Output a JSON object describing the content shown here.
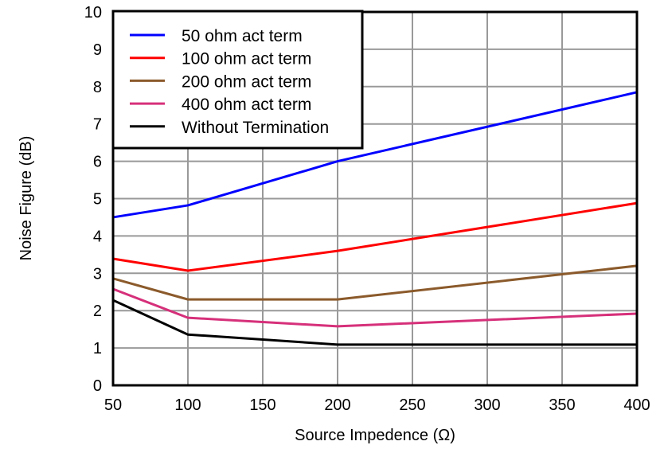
{
  "chart_data": {
    "type": "line",
    "title": "",
    "xlabel": "Source Impedence (Ω)",
    "ylabel": "Noise Figure (dB)",
    "xlim": [
      50,
      400
    ],
    "ylim": [
      0,
      10
    ],
    "xticks": [
      50,
      100,
      150,
      200,
      250,
      300,
      350,
      400
    ],
    "yticks": [
      0,
      1,
      2,
      3,
      4,
      5,
      6,
      7,
      8,
      9,
      10
    ],
    "grid": true,
    "legend_position": "top-left",
    "x": [
      50,
      100,
      200,
      400
    ],
    "series": [
      {
        "name": "50 ohm act term",
        "color": "#0000ff",
        "values": [
          4.5,
          4.82,
          6.0,
          7.85
        ]
      },
      {
        "name": "100 ohm act term",
        "color": "#ff0000",
        "values": [
          3.39,
          3.07,
          3.6,
          4.88
        ]
      },
      {
        "name": "200 ohm act term",
        "color": "#8b5a2b",
        "values": [
          2.86,
          2.3,
          2.3,
          3.2
        ]
      },
      {
        "name": "400 ohm act term",
        "color": "#d6307a",
        "values": [
          2.58,
          1.81,
          1.58,
          1.92
        ]
      },
      {
        "name": "Without Termination",
        "color": "#000000",
        "values": [
          2.28,
          1.36,
          1.09,
          1.09
        ]
      }
    ]
  }
}
